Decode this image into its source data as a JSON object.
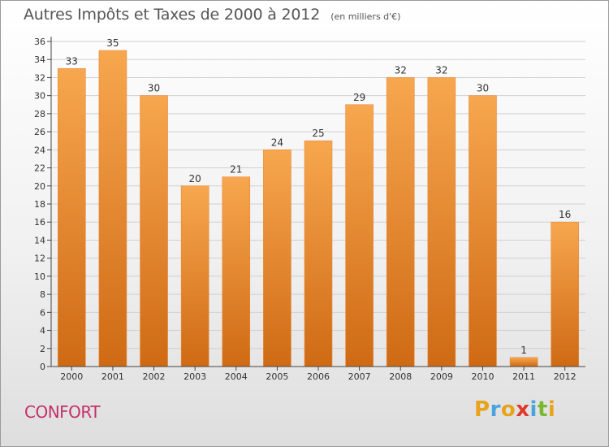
{
  "title": "Autres Impôts et Taxes de 2000 à 2012",
  "unit": "(en milliers d'€)",
  "location": "CONFORT",
  "brand": {
    "letters": [
      "P",
      "r",
      "o",
      "x",
      "i",
      "t",
      "i"
    ],
    "colors": [
      "#e8a31c",
      "#4aa3df",
      "#e8a31c",
      "#e03a2e",
      "#4aa3df",
      "#79b82d",
      "#e8a31c"
    ]
  },
  "colors": {
    "bar_top": "#f7a74f",
    "bar_bottom": "#cf6a14",
    "axis": "#444444",
    "grid": "#d0d0d0"
  },
  "chart_data": {
    "type": "bar",
    "categories": [
      "2000",
      "2001",
      "2002",
      "2003",
      "2004",
      "2005",
      "2006",
      "2007",
      "2008",
      "2009",
      "2010",
      "2011",
      "2012"
    ],
    "values": [
      33,
      35,
      30,
      20,
      21,
      24,
      25,
      29,
      32,
      32,
      30,
      1,
      16
    ],
    "ylim": [
      0,
      36
    ],
    "yticks": [
      0,
      2,
      4,
      6,
      8,
      10,
      12,
      14,
      16,
      18,
      20,
      22,
      24,
      26,
      28,
      30,
      32,
      34,
      36
    ],
    "grid": true,
    "data_labels": true
  }
}
